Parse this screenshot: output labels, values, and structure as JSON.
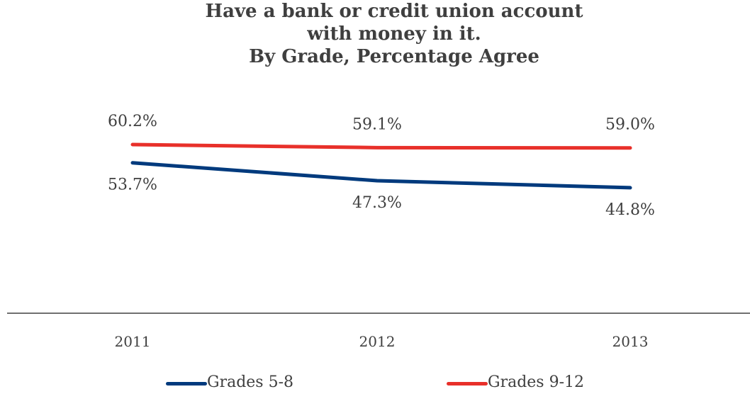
{
  "chart_data": {
    "type": "line",
    "title_lines": [
      "Have a bank or credit union account",
      "with money in it.",
      "By Grade, Percentage Agree"
    ],
    "categories": [
      "2011",
      "2012",
      "2013"
    ],
    "series": [
      {
        "name": "Grades 5-8",
        "values": [
          53.7,
          47.3,
          44.8
        ],
        "labels": [
          "53.7%",
          "47.3%",
          "44.8%"
        ],
        "color": "#003a7d"
      },
      {
        "name": "Grades 9-12",
        "values": [
          60.2,
          59.1,
          59.0
        ],
        "labels": [
          "60.2%",
          "59.1%",
          "59.0%"
        ],
        "color": "#e8302a"
      }
    ],
    "grid": false,
    "legend_position": "bottom"
  }
}
